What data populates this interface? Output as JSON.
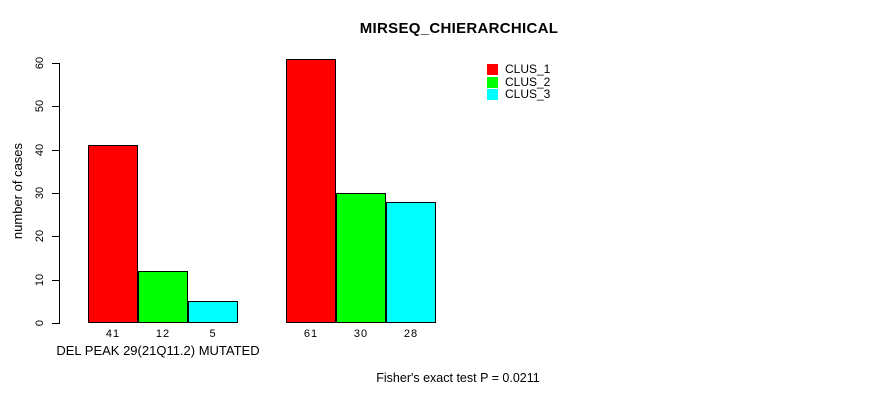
{
  "chart_data": {
    "type": "bar",
    "title": "MIRSEQ_CHIERARCHICAL",
    "ylabel": "number of cases",
    "xlabel": "",
    "ylim": [
      0,
      60
    ],
    "yticks": [
      0,
      10,
      20,
      30,
      40,
      50,
      60
    ],
    "grid": false,
    "legend_position": "top-right",
    "categories": [
      "DEL PEAK 29(21Q11.2) MUTATED",
      ""
    ],
    "series": [
      {
        "name": "CLUS_1",
        "color": "#ff0000",
        "values": [
          41,
          61
        ]
      },
      {
        "name": "CLUS_2",
        "color": "#00ff00",
        "values": [
          12,
          30
        ]
      },
      {
        "name": "CLUS_3",
        "color": "#00ffff",
        "values": [
          5,
          28
        ]
      }
    ],
    "bar_value_labels": [
      [
        41,
        12,
        5
      ],
      [
        61,
        30,
        28
      ]
    ],
    "annotation": "Fisher's exact test P = 0.0211"
  }
}
